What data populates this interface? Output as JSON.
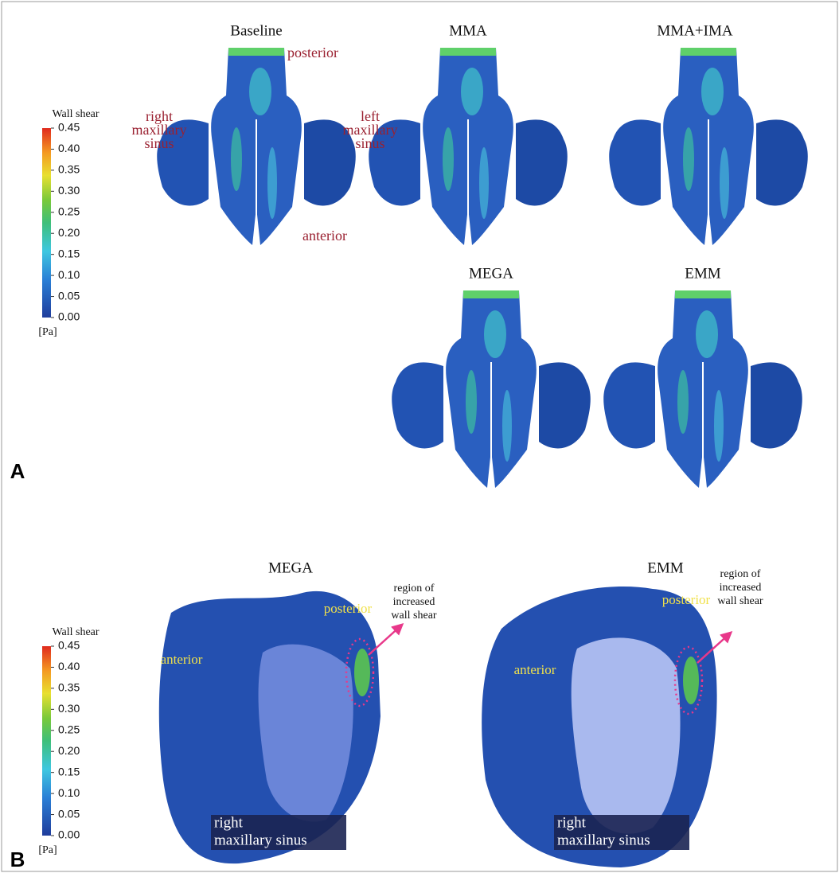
{
  "panel_a": {
    "label": "A",
    "colorbar": {
      "title": "Wall shear",
      "ticks": [
        "0.45",
        "0.40",
        "0.35",
        "0.30",
        "0.25",
        "0.20",
        "0.15",
        "0.10",
        "0.05",
        "0.00"
      ],
      "unit": "[Pa]"
    },
    "views": [
      {
        "title": "Baseline"
      },
      {
        "title": "MMA"
      },
      {
        "title": "MMA+IMA"
      },
      {
        "title": "MEGA"
      },
      {
        "title": "EMM"
      }
    ],
    "annotations": {
      "posterior": "posterior",
      "anterior": "anterior",
      "right": [
        "right",
        "maxillary",
        "sinus"
      ],
      "left": [
        "left",
        "maxillary",
        "sinus"
      ]
    }
  },
  "panel_b": {
    "label": "B",
    "colorbar": {
      "title": "Wall shear",
      "ticks": [
        "0.45",
        "0.40",
        "0.35",
        "0.30",
        "0.25",
        "0.20",
        "0.15",
        "0.10",
        "0.05",
        "0.00"
      ],
      "unit": "[Pa]"
    },
    "views": [
      {
        "title": "MEGA",
        "posterior": "posterior",
        "anterior": "anterior",
        "sinus": [
          "right",
          "maxillary sinus"
        ],
        "region": [
          "region of",
          "increased",
          "wall shear"
        ]
      },
      {
        "title": "EMM",
        "posterior": "posterior",
        "anterior": "anterior",
        "sinus": [
          "right",
          "maxillary sinus"
        ],
        "region": [
          "region of",
          "increased",
          "wall shear"
        ]
      }
    ]
  }
}
